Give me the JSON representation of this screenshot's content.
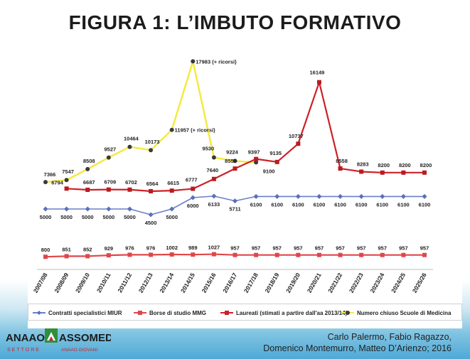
{
  "title": "FIGURA 1: L’IMBUTO FORMATIVO",
  "authors": {
    "line1": "Carlo Palermo, Fabio Ragazzo,",
    "line2": "Domenico Montemurro, Matteo D’Arienzo; 2016"
  },
  "logo": {
    "left_word": "ANAAO",
    "right_word": "ASSOMED",
    "sub_left": "SETTORE",
    "sub_right": "ANAAO GIOVANI"
  },
  "colors": {
    "contratti": "#6b7fc8",
    "borse": "#e0464a",
    "laureati": "#cc2127",
    "numero_chiuso": "#f4e93a"
  },
  "chart_data": {
    "type": "line",
    "categories": [
      "2007/08",
      "2008/09",
      "2009/10",
      "2010/11",
      "2011/12",
      "2012/13",
      "2013/14",
      "2014/15",
      "2015/16",
      "2016/17",
      "2017/18",
      "2018/19",
      "2019/20",
      "2020/21",
      "2021/22",
      "2022/23",
      "2023/24",
      "2024/25",
      "2025/26"
    ],
    "ylim": [
      0,
      19000
    ],
    "grid": false,
    "legend_position": "bottom",
    "series": [
      {
        "name": "Contratti specialistici MIUR",
        "color": "#6b7fc8",
        "x": [
          "2007/08",
          "2008/09",
          "2009/10",
          "2010/11",
          "2011/12",
          "2012/13",
          "2013/14",
          "2014/15",
          "2015/16",
          "2016/17",
          "2017/18",
          "2018/19",
          "2019/20",
          "2020/21",
          "2021/22",
          "2022/23",
          "2023/24",
          "2024/25",
          "2025/26"
        ],
        "values": [
          5000,
          5000,
          5000,
          5000,
          5000,
          4500,
          5000,
          6000,
          6133,
          5711,
          6100,
          6100,
          6100,
          6100,
          6100,
          6100,
          6100,
          6100,
          6100
        ],
        "labels": [
          "5000",
          "5000",
          "5000",
          "5000",
          "5000",
          "4500",
          "5000",
          "6000",
          "6133",
          "5711",
          "6100",
          "6100",
          "6100",
          "6100",
          "6100",
          "6100",
          "6100",
          "6100",
          "6100"
        ]
      },
      {
        "name": "Borse di studio MMG",
        "color": "#e0464a",
        "x": [
          "2007/08",
          "2008/09",
          "2009/10",
          "2010/11",
          "2011/12",
          "2012/13",
          "2013/14",
          "2014/15",
          "2015/16",
          "2016/17",
          "2017/18",
          "2018/19",
          "2019/20",
          "2020/21",
          "2021/22",
          "2022/23",
          "2023/24",
          "2024/25",
          "2025/26"
        ],
        "values": [
          800,
          851,
          852,
          929,
          976,
          976,
          1002,
          989,
          1027,
          957,
          957,
          957,
          957,
          957,
          957,
          957,
          957,
          957,
          957
        ],
        "labels": [
          "800",
          "851",
          "852",
          "929",
          "976",
          "976",
          "1002",
          "989",
          "1027",
          "957",
          "957",
          "957",
          "957",
          "957",
          "957",
          "957",
          "957",
          "957",
          "957"
        ]
      },
      {
        "name": "Laureati (stimati a partire dall'aa 2013/14)",
        "color": "#cc2127",
        "x": [
          "2008/09",
          "2009/10",
          "2010/11",
          "2011/12",
          "2012/13",
          "2013/14",
          "2014/15",
          "2015/16",
          "2016/17",
          "2017/18",
          "2018/19",
          "2019/20",
          "2020/21",
          "2021/22",
          "2022/23",
          "2023/24",
          "2024/25",
          "2025/26"
        ],
        "values": [
          6794,
          6687,
          6709,
          6702,
          6564,
          6615,
          6777,
          7640,
          8555,
          9397,
          9135,
          10737,
          16149,
          8558,
          8283,
          8200,
          8200,
          8200
        ],
        "labels": [
          "6794",
          "6687",
          "6709",
          "6702",
          "6564",
          "6615",
          "6777",
          "7640",
          "8555",
          "9397",
          "9135",
          "10737",
          "16149",
          "8558",
          "8283",
          "8200",
          "8200",
          "8200"
        ]
      },
      {
        "name": "Numero chiuso Scuole di Medicina",
        "color": "#f4e93a",
        "x": [
          "2007/08",
          "2008/09",
          "2009/10",
          "2010/11",
          "2011/12",
          "2012/13",
          "2013/14",
          "2014/15",
          "2015/16",
          "2016/17",
          "2017/18"
        ],
        "values": [
          7366,
          7547,
          8508,
          9527,
          10464,
          10173,
          11957,
          17983,
          9530,
          9224,
          9100
        ],
        "labels": [
          "7366",
          "7547",
          "8508",
          "9527",
          "10464",
          "10173",
          "11957 (+ ricorsi)",
          "17983 (+ ricorsi)",
          "9530",
          "9224",
          "9100"
        ]
      }
    ]
  }
}
